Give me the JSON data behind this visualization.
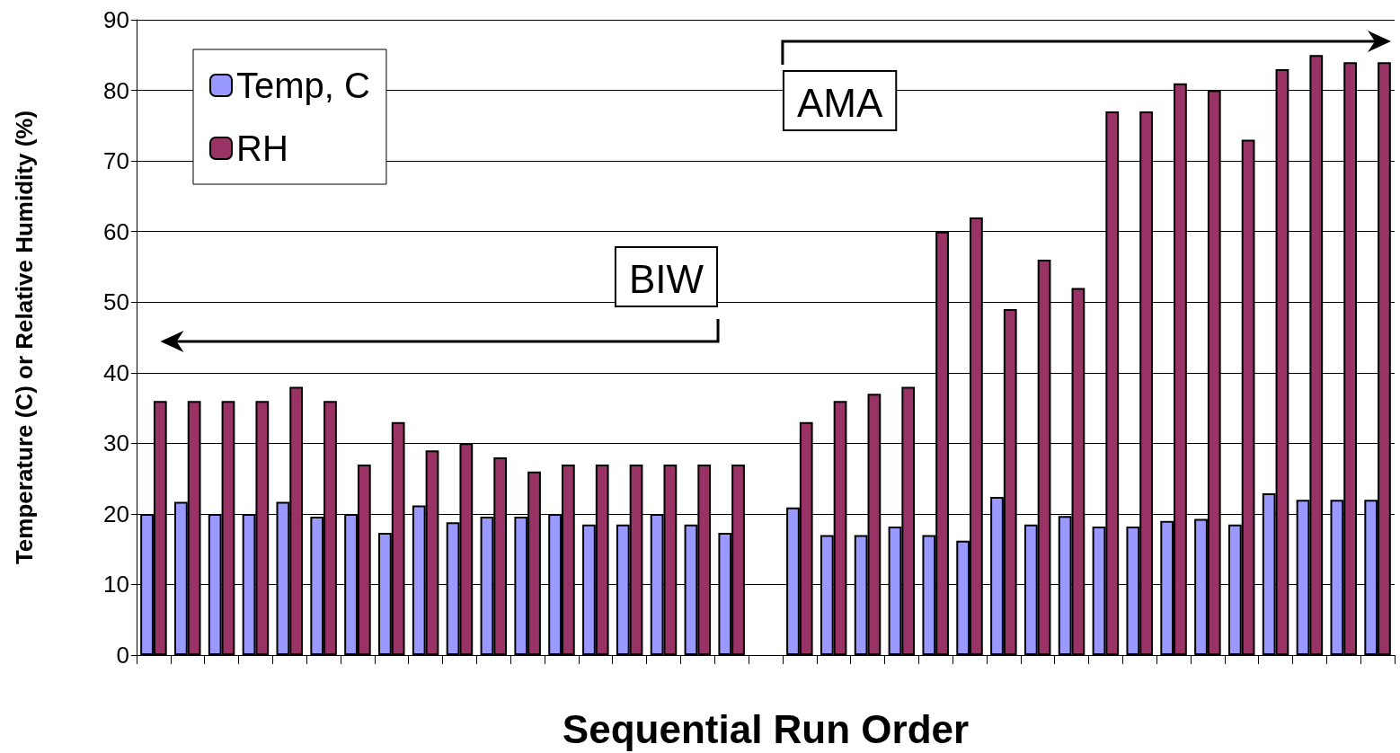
{
  "chart_data": {
    "type": "bar",
    "xlabel": "Sequential Run Order",
    "ylabel": "Temperature (C) or Relative Humidity (%)",
    "categories": [
      null,
      null,
      null,
      null,
      null,
      null,
      null,
      null,
      null,
      null,
      null,
      null,
      null,
      null,
      null,
      null,
      null,
      null,
      null,
      null,
      null,
      null,
      null,
      null,
      null,
      null,
      null,
      null,
      null,
      null,
      null,
      null,
      null,
      null,
      null,
      null,
      null
    ],
    "series": [
      {
        "name": "Temp, C",
        "color": "#9999ff",
        "values": [
          20,
          21.7,
          20,
          20,
          21.7,
          19.6,
          20,
          17.3,
          21.2,
          18.8,
          19.6,
          19.6,
          20,
          18.5,
          18.5,
          20,
          18.5,
          17.3,
          null,
          20.9,
          17,
          17,
          18.2,
          17,
          16.2,
          22.4,
          18.5,
          19.7,
          18.2,
          18.2,
          19,
          19.3,
          18.5,
          22.9,
          22,
          22,
          22
        ]
      },
      {
        "name": "RH",
        "color": "#993366",
        "values": [
          36,
          36,
          36,
          36,
          38,
          36,
          27,
          33,
          29,
          30,
          28,
          26,
          27,
          27,
          27,
          27,
          27,
          27,
          null,
          33,
          36,
          37,
          38,
          60,
          62,
          49,
          56,
          52,
          77,
          77,
          81,
          80,
          73,
          83,
          85,
          84,
          84
        ]
      }
    ],
    "ylim": [
      0,
      90
    ],
    "yticks": [
      0,
      10,
      20,
      30,
      40,
      50,
      60,
      70,
      80,
      90
    ],
    "grid": "y",
    "legend": "top left",
    "annotations": [
      "BIW",
      "AMA"
    ]
  }
}
